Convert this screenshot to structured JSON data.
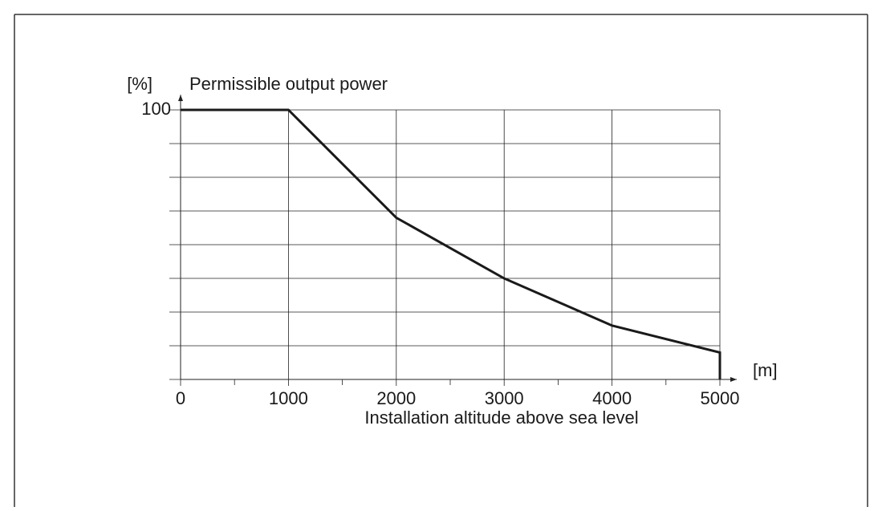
{
  "chart_data": {
    "type": "line",
    "y_label": "Permissible output power",
    "y_unit": "[%]",
    "x_label": "Installation altitude above sea level",
    "x_unit": "[m]",
    "x": [
      0,
      1000,
      2000,
      3000,
      4000,
      5000,
      5000
    ],
    "series": [
      {
        "name": "Permissible output power",
        "color": "#1a1a1a",
        "values": [
          100,
          100,
          60,
          37.5,
          20,
          10,
          0
        ]
      }
    ],
    "xlim": [
      0,
      5000
    ],
    "xticks": [
      0,
      1000,
      2000,
      3000,
      4000,
      5000
    ],
    "xminor": [
      500,
      1500,
      2500,
      3500,
      4500
    ],
    "ylim": [
      0,
      100
    ],
    "yticks": [
      100
    ],
    "ygrid": [
      0,
      12.5,
      25,
      37.5,
      50,
      62.5,
      75,
      87.5
    ],
    "grid": true
  }
}
